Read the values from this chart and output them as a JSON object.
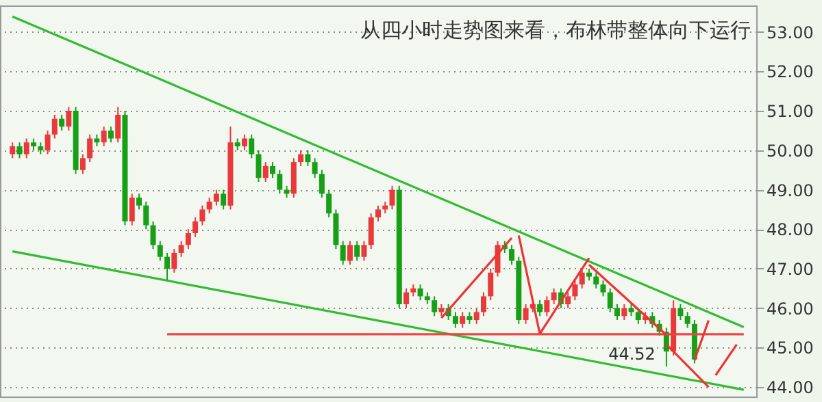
{
  "chart_data": {
    "type": "candlestick",
    "title": "从四小时走势图来看，布林带整体向下运行",
    "ylim": [
      43.76,
      53.67
    ],
    "yticks": [
      {
        "value": 44,
        "label": "44.00"
      },
      {
        "value": 45,
        "label": "45.00"
      },
      {
        "value": 46,
        "label": "46.00"
      },
      {
        "value": 47,
        "label": "47.00"
      },
      {
        "value": 48,
        "label": "48.00"
      },
      {
        "value": 49,
        "label": "49.00"
      },
      {
        "value": 50,
        "label": "50.00"
      },
      {
        "value": 51,
        "label": "51.00"
      },
      {
        "value": 52,
        "label": "52.00"
      },
      {
        "value": 53,
        "label": "53.00"
      }
    ],
    "grid": "y",
    "tick_labels": "y",
    "annotations": [
      {
        "text": "44.52",
        "y": 44.52
      }
    ],
    "categories": [
      null,
      null,
      null,
      null,
      null,
      null,
      null,
      null,
      null,
      null,
      null,
      null,
      null,
      null,
      null,
      null,
      null,
      null,
      null,
      null,
      null,
      null,
      null,
      null,
      null,
      null,
      null,
      null,
      null,
      null,
      null,
      null,
      null,
      null,
      null,
      null,
      null,
      null,
      null,
      null,
      null,
      null,
      null,
      null,
      null,
      null,
      null,
      null,
      null,
      null,
      null,
      null,
      null,
      null,
      null,
      null,
      null,
      null,
      null,
      null,
      null,
      null,
      null,
      null,
      null,
      null,
      null,
      null,
      null,
      null,
      null,
      null,
      null,
      null,
      null,
      null,
      null,
      null,
      null,
      null,
      null,
      null,
      null,
      null,
      null,
      null,
      null,
      null,
      null,
      null,
      null,
      null,
      null,
      null,
      null,
      null,
      null,
      null,
      null,
      null,
      null,
      null,
      null,
      null,
      null
    ],
    "ohlc": [
      [
        49.9,
        50.2,
        49.8,
        50.1
      ],
      [
        50.1,
        50.2,
        49.8,
        49.9
      ],
      [
        49.9,
        50.3,
        49.8,
        50.2
      ],
      [
        50.2,
        50.3,
        50.0,
        50.1
      ],
      [
        50.1,
        50.2,
        49.9,
        50.0
      ],
      [
        50.0,
        50.5,
        49.9,
        50.4
      ],
      [
        50.4,
        50.9,
        50.3,
        50.8
      ],
      [
        50.8,
        50.9,
        50.5,
        50.6
      ],
      [
        50.6,
        51.1,
        50.5,
        51.0
      ],
      [
        51.0,
        51.1,
        49.4,
        49.5
      ],
      [
        49.5,
        49.9,
        49.4,
        49.8
      ],
      [
        49.8,
        50.4,
        49.7,
        50.3
      ],
      [
        50.3,
        50.4,
        50.1,
        50.2
      ],
      [
        50.2,
        50.6,
        50.1,
        50.5
      ],
      [
        50.5,
        50.6,
        50.2,
        50.3
      ],
      [
        50.3,
        51.1,
        50.2,
        50.9
      ],
      [
        50.9,
        51.0,
        48.1,
        48.2
      ],
      [
        48.2,
        48.9,
        48.1,
        48.8
      ],
      [
        48.8,
        48.9,
        48.5,
        48.6
      ],
      [
        48.6,
        48.7,
        48.0,
        48.1
      ],
      [
        48.1,
        48.2,
        47.5,
        47.6
      ],
      [
        47.6,
        47.7,
        47.2,
        47.3
      ],
      [
        47.3,
        47.4,
        46.7,
        47.0
      ],
      [
        47.0,
        47.5,
        46.9,
        47.4
      ],
      [
        47.4,
        47.7,
        47.3,
        47.6
      ],
      [
        47.6,
        48.0,
        47.5,
        47.9
      ],
      [
        47.9,
        48.3,
        47.8,
        48.2
      ],
      [
        48.2,
        48.6,
        48.1,
        48.5
      ],
      [
        48.5,
        48.8,
        48.4,
        48.7
      ],
      [
        48.7,
        49.0,
        48.6,
        48.9
      ],
      [
        48.9,
        49.0,
        48.5,
        48.6
      ],
      [
        48.6,
        50.6,
        48.5,
        50.2
      ],
      [
        50.2,
        50.3,
        50.0,
        50.1
      ],
      [
        50.1,
        50.4,
        50.0,
        50.3
      ],
      [
        50.3,
        50.4,
        49.8,
        49.9
      ],
      [
        49.9,
        50.0,
        49.2,
        49.3
      ],
      [
        49.3,
        49.7,
        49.2,
        49.6
      ],
      [
        49.6,
        49.7,
        49.3,
        49.4
      ],
      [
        49.4,
        49.5,
        48.9,
        49.0
      ],
      [
        49.0,
        49.1,
        48.8,
        48.9
      ],
      [
        48.9,
        49.8,
        48.8,
        49.7
      ],
      [
        49.7,
        50.0,
        49.6,
        49.9
      ],
      [
        49.9,
        50.0,
        49.6,
        49.7
      ],
      [
        49.7,
        49.8,
        49.3,
        49.4
      ],
      [
        49.4,
        49.5,
        48.8,
        48.9
      ],
      [
        48.9,
        49.0,
        48.3,
        48.4
      ],
      [
        48.4,
        48.5,
        47.5,
        47.6
      ],
      [
        47.6,
        47.7,
        47.1,
        47.2
      ],
      [
        47.2,
        47.7,
        47.1,
        47.6
      ],
      [
        47.6,
        47.7,
        47.2,
        47.3
      ],
      [
        47.3,
        47.7,
        47.2,
        47.6
      ],
      [
        47.6,
        48.4,
        47.5,
        48.3
      ],
      [
        48.3,
        48.6,
        48.2,
        48.5
      ],
      [
        48.5,
        48.7,
        48.4,
        48.6
      ],
      [
        48.6,
        49.1,
        48.5,
        49.0
      ],
      [
        49.0,
        49.1,
        46.0,
        46.1
      ],
      [
        46.1,
        46.5,
        46.0,
        46.4
      ],
      [
        46.4,
        46.6,
        46.3,
        46.5
      ],
      [
        46.5,
        46.6,
        46.2,
        46.3
      ],
      [
        46.3,
        46.4,
        46.1,
        46.2
      ],
      [
        46.2,
        46.3,
        45.8,
        45.9
      ],
      [
        45.9,
        46.1,
        45.8,
        46.0
      ],
      [
        46.0,
        46.1,
        45.7,
        45.8
      ],
      [
        45.8,
        45.9,
        45.5,
        45.6
      ],
      [
        45.6,
        45.9,
        45.5,
        45.8
      ],
      [
        45.8,
        45.9,
        45.6,
        45.7
      ],
      [
        45.7,
        46.0,
        45.6,
        45.9
      ],
      [
        45.9,
        46.4,
        45.8,
        46.3
      ],
      [
        46.3,
        47.0,
        46.2,
        46.9
      ],
      [
        46.9,
        47.7,
        46.8,
        47.6
      ],
      [
        47.6,
        47.7,
        47.4,
        47.5
      ],
      [
        47.5,
        47.6,
        47.1,
        47.2
      ],
      [
        47.2,
        47.3,
        45.6,
        45.7
      ],
      [
        45.7,
        46.1,
        45.6,
        46.0
      ],
      [
        46.0,
        46.2,
        45.9,
        46.1
      ],
      [
        46.1,
        46.2,
        45.8,
        45.9
      ],
      [
        45.9,
        46.3,
        45.8,
        46.2
      ],
      [
        46.2,
        46.5,
        46.1,
        46.4
      ],
      [
        46.4,
        46.5,
        46.0,
        46.1
      ],
      [
        46.1,
        46.4,
        46.0,
        46.3
      ],
      [
        46.3,
        46.7,
        46.2,
        46.6
      ],
      [
        46.6,
        47.0,
        46.5,
        46.9
      ],
      [
        46.9,
        47.0,
        46.7,
        46.8
      ],
      [
        46.8,
        46.9,
        46.5,
        46.6
      ],
      [
        46.6,
        46.7,
        46.3,
        46.4
      ],
      [
        46.4,
        46.5,
        45.9,
        46.0
      ],
      [
        46.0,
        46.1,
        45.7,
        45.8
      ],
      [
        45.8,
        46.1,
        45.7,
        46.0
      ],
      [
        46.0,
        46.1,
        45.8,
        45.9
      ],
      [
        45.9,
        46.0,
        45.6,
        45.7
      ],
      [
        45.7,
        45.9,
        45.6,
        45.8
      ],
      [
        45.8,
        45.9,
        45.5,
        45.6
      ],
      [
        45.6,
        45.7,
        45.3,
        45.4
      ],
      [
        45.4,
        45.5,
        44.52,
        44.9
      ],
      [
        44.9,
        46.2,
        44.8,
        46.0
      ],
      [
        46.0,
        46.1,
        45.7,
        45.8
      ],
      [
        45.8,
        45.9,
        45.5,
        45.6
      ],
      [
        45.6,
        45.7,
        44.6,
        44.7
      ],
      null,
      null,
      null,
      null,
      null,
      null,
      null
    ],
    "colors": [
      "#e83a3a",
      "#17a017",
      "#e83a3a",
      "#17a017",
      "#17a017",
      "#e83a3a",
      "#e83a3a",
      "#17a017",
      "#e83a3a",
      "#17a017",
      "#e83a3a",
      "#e83a3a",
      "#17a017",
      "#e83a3a",
      "#17a017",
      "#e83a3a",
      "#17a017",
      "#e83a3a",
      "#17a017",
      "#17a017",
      "#17a017",
      "#17a017",
      "#17a017",
      "#e83a3a",
      "#e83a3a",
      "#e83a3a",
      "#e83a3a",
      "#e83a3a",
      "#e83a3a",
      "#e83a3a",
      "#17a017",
      "#e83a3a",
      "#17a017",
      "#e83a3a",
      "#17a017",
      "#17a017",
      "#e83a3a",
      "#17a017",
      "#17a017",
      "#17a017",
      "#e83a3a",
      "#e83a3a",
      "#17a017",
      "#17a017",
      "#17a017",
      "#17a017",
      "#17a017",
      "#17a017",
      "#e83a3a",
      "#17a017",
      "#e83a3a",
      "#e83a3a",
      "#e83a3a",
      "#e83a3a",
      "#e83a3a",
      "#17a017",
      "#e83a3a",
      "#e83a3a",
      "#17a017",
      "#17a017",
      "#17a017",
      "#e83a3a",
      "#17a017",
      "#17a017",
      "#e83a3a",
      "#17a017",
      "#e83a3a",
      "#e83a3a",
      "#e83a3a",
      "#e83a3a",
      "#17a017",
      "#17a017",
      "#17a017",
      "#e83a3a",
      "#e83a3a",
      "#17a017",
      "#e83a3a",
      "#e83a3a",
      "#17a017",
      "#e83a3a",
      "#e83a3a",
      "#e83a3a",
      "#17a017",
      "#17a017",
      "#17a017",
      "#17a017",
      "#17a017",
      "#e83a3a",
      "#17a017",
      "#17a017",
      "#e83a3a",
      "#17a017",
      "#17a017",
      "#17a017",
      "#e83a3a",
      "#17a017",
      "#17a017",
      "#17a017",
      null,
      null,
      null,
      null,
      null,
      null,
      null
    ],
    "series": [
      {
        "type": "line",
        "color": "#33bb33",
        "values": [
          53.39,
          null,
          null,
          null,
          null,
          null,
          null,
          null,
          null,
          null,
          null,
          null,
          null,
          null,
          null,
          null,
          null,
          null,
          null,
          null,
          null,
          null,
          null,
          null,
          null,
          null,
          null,
          null,
          null,
          null,
          null,
          null,
          null,
          null,
          null,
          null,
          null,
          null,
          null,
          null,
          null,
          null,
          null,
          null,
          null,
          null,
          null,
          null,
          null,
          null,
          null,
          null,
          null,
          null,
          null,
          null,
          null,
          null,
          null,
          null,
          null,
          null,
          null,
          null,
          null,
          null,
          null,
          null,
          null,
          null,
          null,
          null,
          null,
          null,
          null,
          null,
          null,
          null,
          null,
          null,
          null,
          null,
          null,
          null,
          null,
          null,
          null,
          null,
          null,
          null,
          null,
          null,
          null,
          null,
          null,
          null,
          null,
          null,
          null,
          null,
          null,
          null,
          null,
          null,
          45.52
        ]
      },
      {
        "type": "line",
        "color": "#33bb33",
        "values": [
          47.44,
          null,
          null,
          null,
          null,
          null,
          null,
          null,
          null,
          null,
          null,
          null,
          null,
          null,
          null,
          null,
          null,
          null,
          null,
          null,
          null,
          null,
          null,
          null,
          null,
          null,
          null,
          null,
          null,
          null,
          null,
          null,
          null,
          null,
          null,
          null,
          null,
          null,
          null,
          null,
          null,
          null,
          null,
          null,
          null,
          null,
          null,
          null,
          null,
          null,
          null,
          null,
          null,
          null,
          null,
          null,
          null,
          null,
          null,
          null,
          null,
          null,
          null,
          null,
          null,
          null,
          null,
          null,
          null,
          null,
          null,
          null,
          null,
          null,
          null,
          null,
          null,
          null,
          null,
          null,
          null,
          null,
          null,
          null,
          null,
          null,
          null,
          null,
          null,
          null,
          null,
          null,
          null,
          null,
          null,
          null,
          null,
          null,
          null,
          null,
          null,
          null,
          null,
          null,
          43.93
        ]
      },
      {
        "type": "line",
        "color": "#ee4444",
        "values": [
          null,
          null,
          null,
          null,
          null,
          null,
          null,
          null,
          null,
          null,
          null,
          null,
          null,
          null,
          null,
          null,
          null,
          null,
          null,
          null,
          null,
          null,
          45.34,
          null,
          null,
          null,
          null,
          null,
          null,
          null,
          null,
          null,
          null,
          null,
          null,
          null,
          null,
          null,
          null,
          null,
          null,
          null,
          null,
          null,
          null,
          null,
          null,
          null,
          null,
          null,
          null,
          null,
          null,
          null,
          null,
          null,
          null,
          null,
          null,
          null,
          null,
          null,
          null,
          null,
          null,
          null,
          null,
          null,
          null,
          null,
          null,
          null,
          null,
          null,
          null,
          null,
          null,
          null,
          null,
          null,
          null,
          null,
          null,
          null,
          null,
          null,
          null,
          null,
          null,
          null,
          null,
          null,
          null,
          null,
          null,
          null,
          null,
          null,
          null,
          null,
          null,
          null,
          null,
          null,
          45.34
        ]
      },
      {
        "type": "line",
        "color": "#ee3333",
        "values": [
          null,
          null,
          null,
          null,
          null,
          null,
          null,
          null,
          null,
          null,
          null,
          null,
          null,
          null,
          null,
          null,
          null,
          null,
          null,
          null,
          null,
          null,
          null,
          null,
          null,
          null,
          null,
          null,
          null,
          null,
          null,
          null,
          null,
          null,
          null,
          null,
          null,
          null,
          null,
          null,
          null,
          null,
          null,
          null,
          null,
          null,
          null,
          null,
          null,
          null,
          null,
          null,
          null,
          null,
          null,
          null,
          null,
          null,
          null,
          null,
          null,
          45.75,
          null,
          null,
          null,
          null,
          null,
          null,
          null,
          null,
          null,
          47.78,
          null,
          null,
          null,
          null,
          null,
          null,
          null,
          null,
          null,
          null,
          null,
          null,
          null,
          null,
          null,
          null,
          null,
          null,
          null,
          null,
          null,
          null,
          null,
          null,
          null,
          null,
          null,
          null,
          null,
          null,
          null,
          null,
          null
        ]
      },
      {
        "type": "line",
        "color": "#ee3333",
        "values": [
          null,
          null,
          null,
          null,
          null,
          null,
          null,
          null,
          null,
          null,
          null,
          null,
          null,
          null,
          null,
          null,
          null,
          null,
          null,
          null,
          null,
          null,
          null,
          null,
          null,
          null,
          null,
          null,
          null,
          null,
          null,
          null,
          null,
          null,
          null,
          null,
          null,
          null,
          null,
          null,
          null,
          null,
          null,
          null,
          null,
          null,
          null,
          null,
          null,
          null,
          null,
          null,
          null,
          null,
          null,
          null,
          null,
          null,
          null,
          null,
          null,
          null,
          null,
          null,
          null,
          null,
          null,
          null,
          null,
          null,
          null,
          null,
          47.84,
          null,
          null,
          45.35,
          null,
          null,
          null,
          null,
          null,
          null,
          null,
          null,
          null,
          null,
          null,
          null,
          null,
          null,
          null,
          null,
          null,
          null,
          null,
          null,
          null,
          null,
          null,
          null,
          null,
          null,
          null,
          null,
          null
        ]
      },
      {
        "type": "line",
        "color": "#ee3333",
        "values": [
          null,
          null,
          null,
          null,
          null,
          null,
          null,
          null,
          null,
          null,
          null,
          null,
          null,
          null,
          null,
          null,
          null,
          null,
          null,
          null,
          null,
          null,
          null,
          null,
          null,
          null,
          null,
          null,
          null,
          null,
          null,
          null,
          null,
          null,
          null,
          null,
          null,
          null,
          null,
          null,
          null,
          null,
          null,
          null,
          null,
          null,
          null,
          null,
          null,
          null,
          null,
          null,
          null,
          null,
          null,
          null,
          null,
          null,
          null,
          null,
          null,
          null,
          null,
          null,
          null,
          null,
          null,
          null,
          null,
          null,
          null,
          null,
          null,
          null,
          null,
          45.35,
          null,
          null,
          null,
          null,
          null,
          null,
          47.27,
          null,
          null,
          null,
          null,
          null,
          null,
          null,
          null,
          null,
          null,
          null,
          null,
          null,
          null,
          null,
          null,
          null,
          null,
          null,
          null,
          null,
          null
        ]
      },
      {
        "type": "line",
        "color": "#ee3333",
        "values": [
          null,
          null,
          null,
          null,
          null,
          null,
          null,
          null,
          null,
          null,
          null,
          null,
          null,
          null,
          null,
          null,
          null,
          null,
          null,
          null,
          null,
          null,
          null,
          null,
          null,
          null,
          null,
          null,
          null,
          null,
          null,
          null,
          null,
          null,
          null,
          null,
          null,
          null,
          null,
          null,
          null,
          null,
          null,
          null,
          null,
          null,
          null,
          null,
          null,
          null,
          null,
          null,
          null,
          null,
          null,
          null,
          null,
          null,
          null,
          null,
          null,
          null,
          null,
          null,
          null,
          null,
          null,
          null,
          null,
          null,
          null,
          null,
          null,
          null,
          null,
          null,
          null,
          null,
          null,
          null,
          null,
          null,
          47.1,
          null,
          null,
          null,
          null,
          null,
          null,
          null,
          null,
          null,
          null,
          45.32,
          null,
          null,
          null,
          null,
          null,
          null,
          null,
          null,
          null,
          null,
          null
        ]
      },
      {
        "type": "line",
        "color": "#ee3333",
        "values": [
          null,
          null,
          null,
          null,
          null,
          null,
          null,
          null,
          null,
          null,
          null,
          null,
          null,
          null,
          null,
          null,
          null,
          null,
          null,
          null,
          null,
          null,
          null,
          null,
          null,
          null,
          null,
          null,
          null,
          null,
          null,
          null,
          null,
          null,
          null,
          null,
          null,
          null,
          null,
          null,
          null,
          null,
          null,
          null,
          null,
          null,
          null,
          null,
          null,
          null,
          null,
          null,
          null,
          null,
          null,
          null,
          null,
          null,
          null,
          null,
          null,
          null,
          null,
          null,
          null,
          null,
          null,
          null,
          null,
          null,
          null,
          null,
          null,
          null,
          null,
          null,
          null,
          null,
          null,
          null,
          null,
          null,
          null,
          null,
          null,
          null,
          null,
          null,
          null,
          null,
          null,
          null,
          null,
          45.08,
          null,
          null,
          null,
          null,
          null,
          44.0,
          null,
          null,
          null,
          null,
          null
        ]
      },
      {
        "type": "line",
        "color": "#ee3333",
        "values": [
          null,
          null,
          null,
          null,
          null,
          null,
          null,
          null,
          null,
          null,
          null,
          null,
          null,
          null,
          null,
          null,
          null,
          null,
          null,
          null,
          null,
          null,
          null,
          null,
          null,
          null,
          null,
          null,
          null,
          null,
          null,
          null,
          null,
          null,
          null,
          null,
          null,
          null,
          null,
          null,
          null,
          null,
          null,
          null,
          null,
          null,
          null,
          null,
          null,
          null,
          null,
          null,
          null,
          null,
          null,
          null,
          null,
          null,
          null,
          null,
          null,
          null,
          null,
          null,
          null,
          null,
          null,
          null,
          null,
          null,
          null,
          null,
          null,
          null,
          null,
          null,
          null,
          null,
          null,
          null,
          null,
          null,
          null,
          null,
          null,
          null,
          null,
          null,
          null,
          null,
          null,
          null,
          null,
          null,
          null,
          null,
          null,
          44.68,
          null,
          45.69,
          null,
          null,
          null,
          null,
          null
        ]
      },
      {
        "type": "line",
        "color": "#ee3333",
        "values": [
          null,
          null,
          null,
          null,
          null,
          null,
          null,
          null,
          null,
          null,
          null,
          null,
          null,
          null,
          null,
          null,
          null,
          null,
          null,
          null,
          null,
          null,
          null,
          null,
          null,
          null,
          null,
          null,
          null,
          null,
          null,
          null,
          null,
          null,
          null,
          null,
          null,
          null,
          null,
          null,
          null,
          null,
          null,
          null,
          null,
          null,
          null,
          null,
          null,
          null,
          null,
          null,
          null,
          null,
          null,
          null,
          null,
          null,
          null,
          null,
          null,
          null,
          null,
          null,
          null,
          null,
          null,
          null,
          null,
          null,
          null,
          null,
          null,
          null,
          null,
          null,
          null,
          null,
          null,
          null,
          null,
          null,
          null,
          null,
          null,
          null,
          null,
          null,
          null,
          null,
          null,
          null,
          null,
          null,
          null,
          null,
          null,
          null,
          null,
          null,
          44.3,
          null,
          null,
          45.08,
          null
        ]
      }
    ]
  }
}
